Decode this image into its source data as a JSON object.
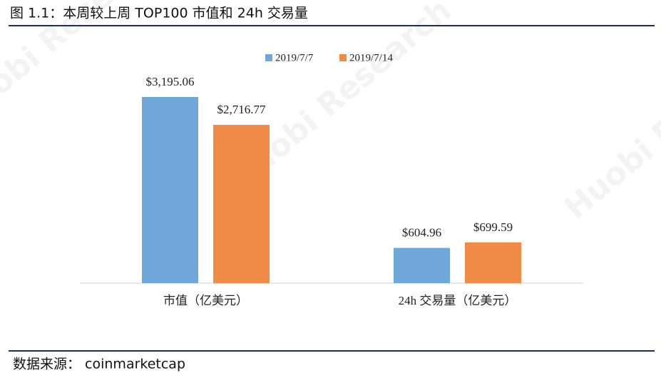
{
  "chart_data": {
    "type": "bar",
    "title": "图 1.1：本周较上周 TOP100 市值和 24h 交易量",
    "categories": [
      "市值（亿美元）",
      "24h 交易量（亿美元）"
    ],
    "series": [
      {
        "name": "2019/7/7",
        "color": "#6fa7da",
        "values": [
          3195.06,
          604.96
        ],
        "value_labels": [
          "$3,195.06",
          "$604.96"
        ]
      },
      {
        "name": "2019/7/14",
        "color": "#ef8b47",
        "values": [
          2716.77,
          699.59
        ],
        "value_labels": [
          "$2,716.77",
          "$699.59"
        ]
      }
    ],
    "legend": "top",
    "source": "数据来源：  coinmarketcap",
    "watermark": "Huobi Research"
  }
}
